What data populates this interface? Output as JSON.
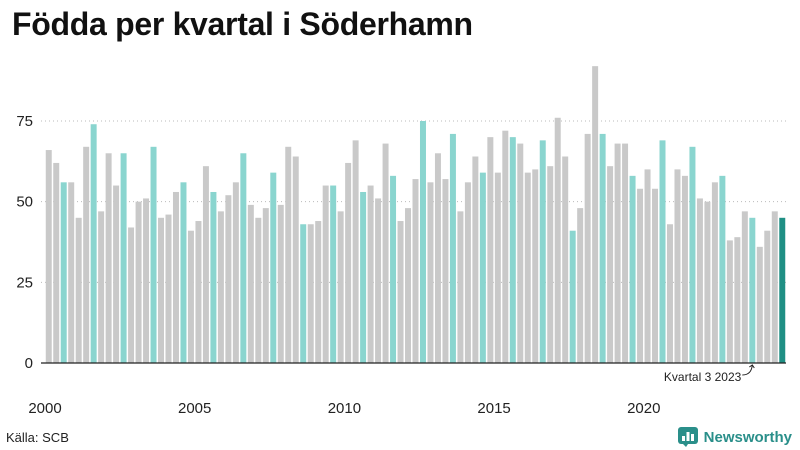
{
  "title": "Födda per kvartal i Söderhamn",
  "source": "Källa: SCB",
  "brand": {
    "name": "Newsworthy",
    "icon": "newsworthy-logo-icon"
  },
  "colors": {
    "default": "#c9c9c9",
    "q3": "#8ad5cf",
    "latest": "#1f8f84",
    "axis": "#222222",
    "grid": "#bbbbbb",
    "brand": "#2a8f8a"
  },
  "chart_data": {
    "type": "bar",
    "title": "Födda per kvartal i Söderhamn",
    "xlabel": "",
    "ylabel": "",
    "ylim": [
      0,
      95
    ],
    "y_ticks": [
      0,
      25,
      50,
      75
    ],
    "x_tick_labels": [
      "2000",
      "2005",
      "2010",
      "2015",
      "2020"
    ],
    "grid": "horizontal dotted",
    "start": {
      "year": 2000,
      "quarter": 1
    },
    "highlight_rule": "Kvartal 3 highlighted; latest quarter emphasized",
    "values": [
      66,
      62,
      56,
      56,
      45,
      67,
      74,
      47,
      65,
      55,
      65,
      42,
      50,
      51,
      67,
      45,
      46,
      53,
      56,
      41,
      44,
      61,
      53,
      47,
      52,
      56,
      65,
      49,
      45,
      48,
      59,
      49,
      67,
      64,
      43,
      43,
      44,
      55,
      55,
      47,
      62,
      69,
      53,
      55,
      51,
      68,
      58,
      44,
      48,
      57,
      75,
      56,
      65,
      57,
      71,
      47,
      56,
      64,
      59,
      70,
      59,
      72,
      70,
      68,
      59,
      60,
      69,
      61,
      76,
      64,
      41,
      48,
      71,
      92,
      71,
      61,
      68,
      68,
      58,
      54,
      60,
      54,
      69,
      43,
      60,
      58,
      67,
      51,
      50,
      56,
      58,
      38,
      39,
      47,
      45,
      36,
      41,
      47,
      45
    ],
    "annotation": {
      "text": "Kvartal 3 2023",
      "target_index": 94
    }
  }
}
